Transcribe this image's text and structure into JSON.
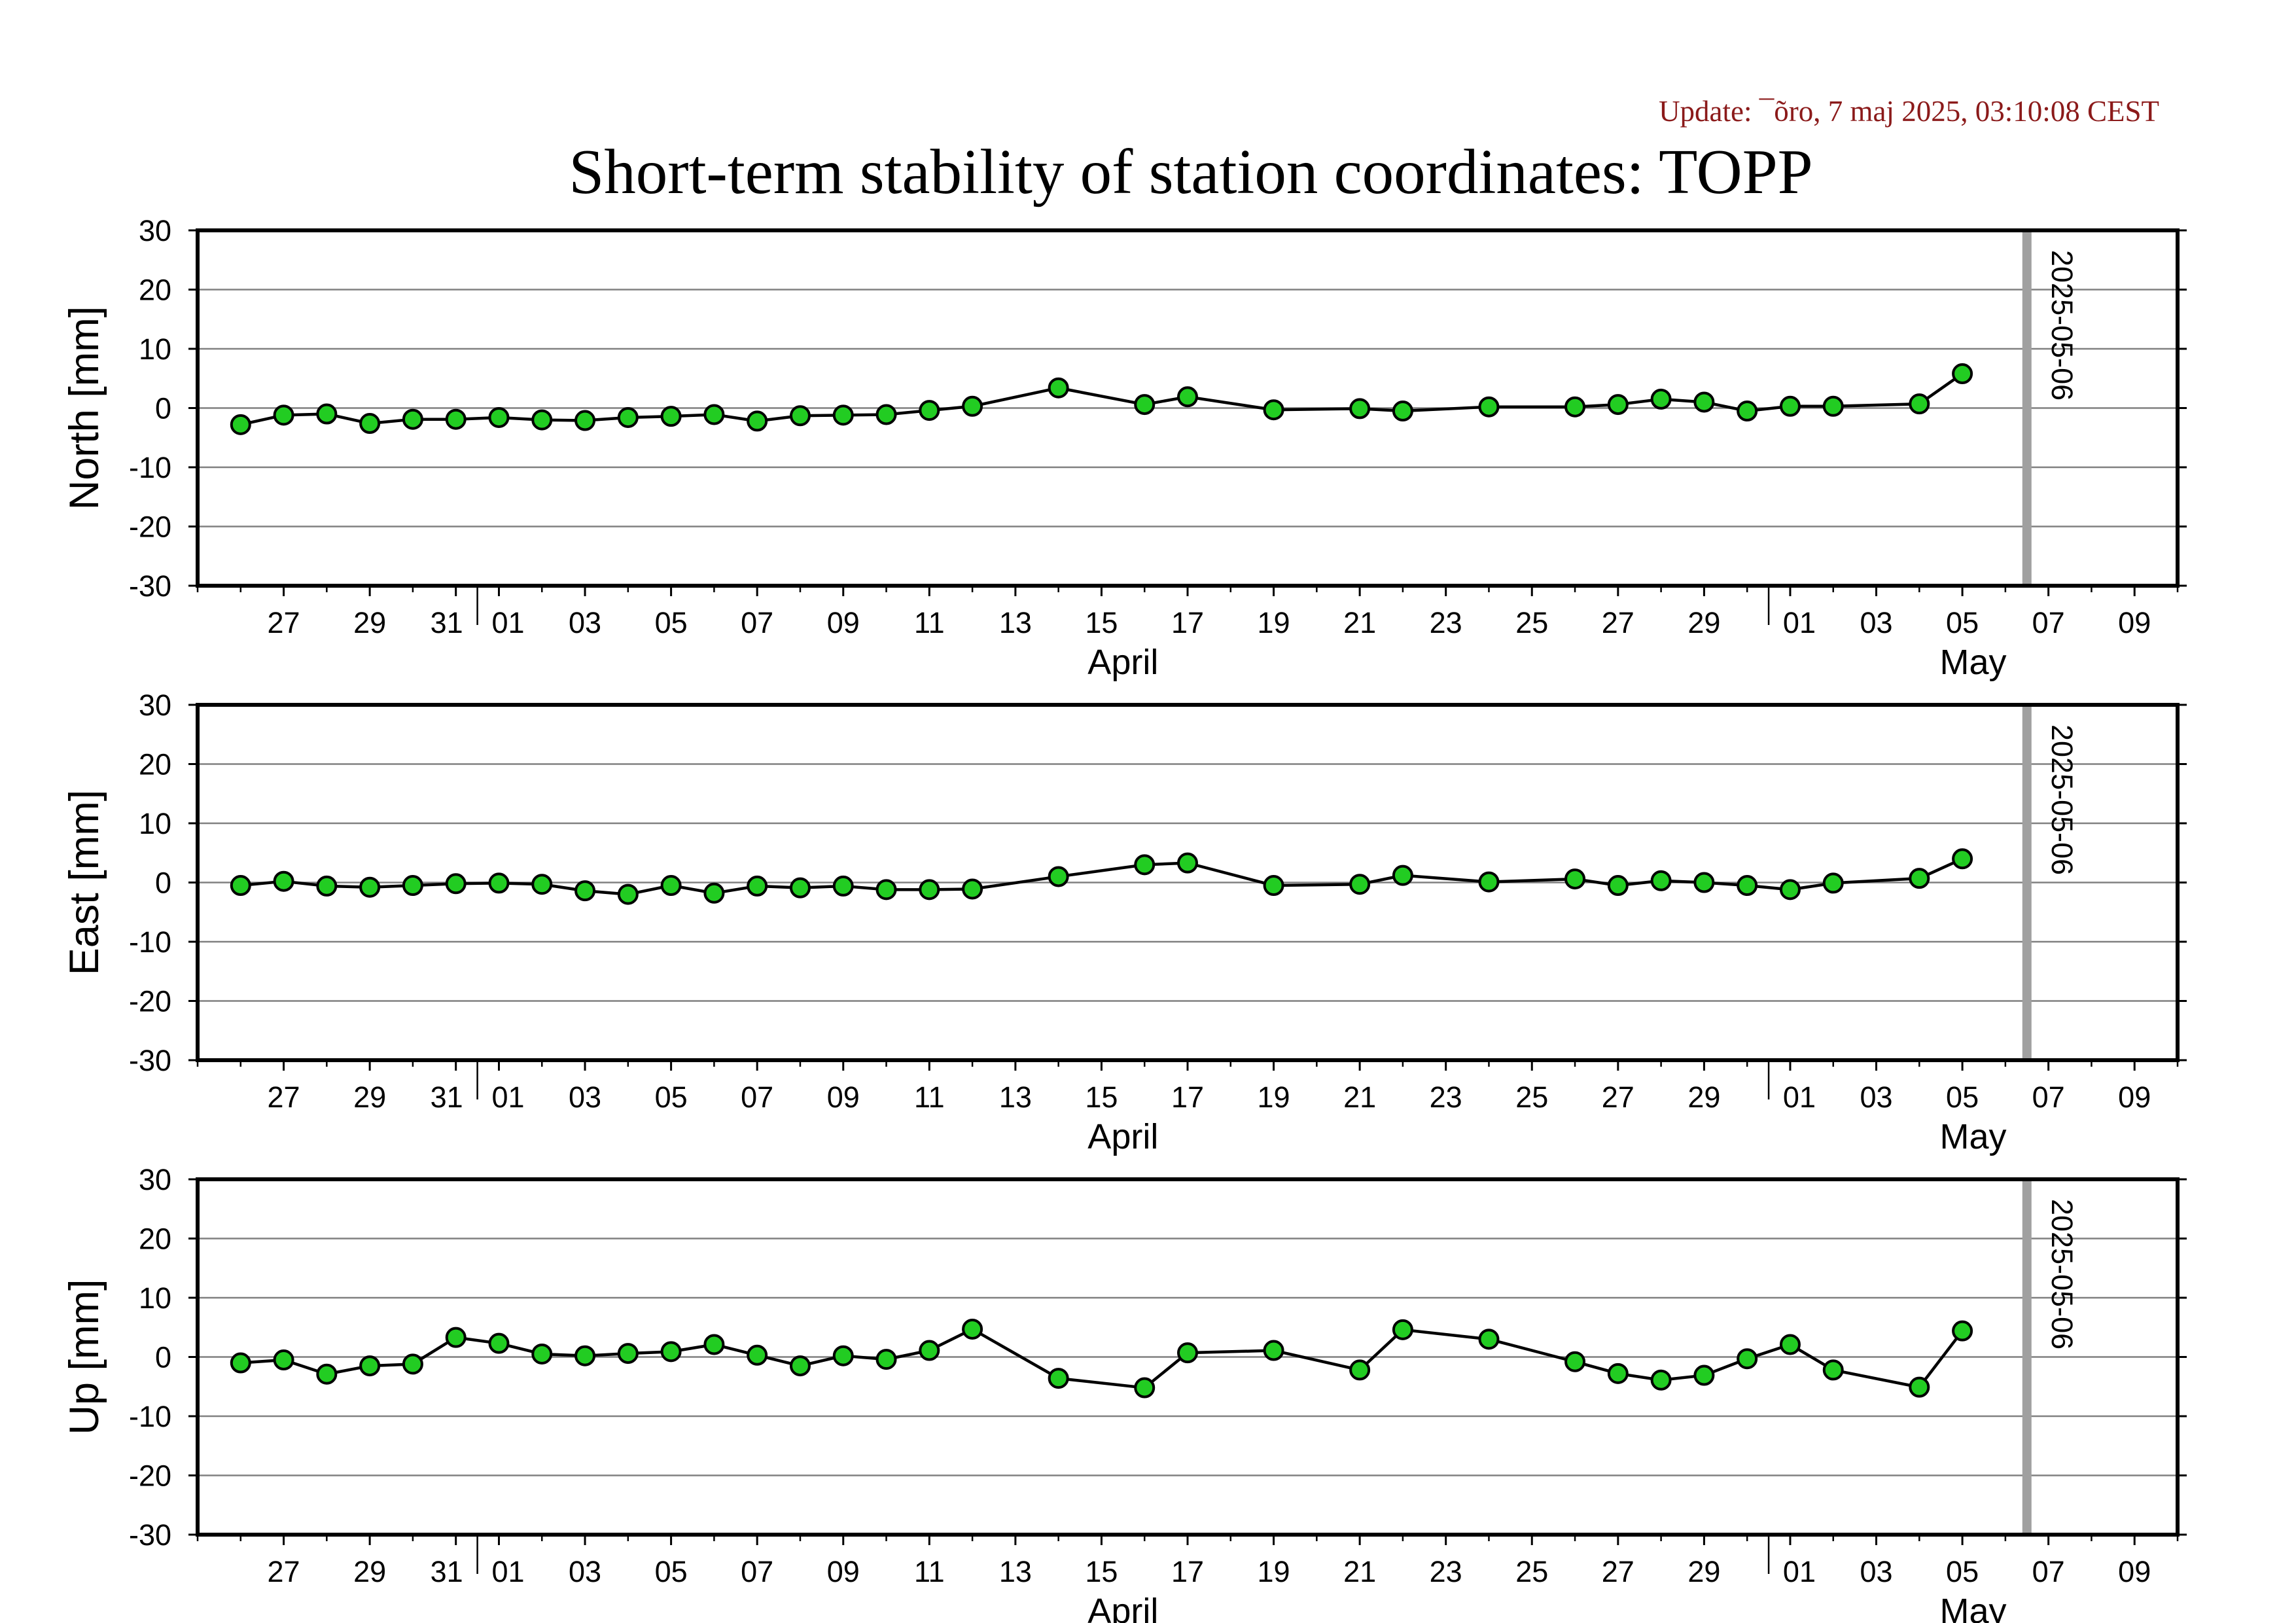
{
  "update_text": "Update: ¯õro, 7 maj 2025, 03:10:08 CEST",
  "title": "Short-term stability of station coordinates: TOPP",
  "colors": {
    "marker_fill": "#22cc22",
    "marker_stroke": "#000000",
    "line": "#000000",
    "grid": "#808080",
    "date_marker": "#a0a0a0",
    "update_text": "#8b1a1a"
  },
  "chart_data": [
    {
      "type": "line",
      "name": "north",
      "ylabel": "North [mm]",
      "ylim": [
        -30,
        30
      ],
      "yticks": [
        30,
        20,
        10,
        0,
        -10,
        -20,
        -30
      ],
      "xlim": [
        "2025-03-25",
        "2025-05-10"
      ],
      "x_tick_labels": [
        "27",
        "29",
        "31",
        "01",
        "03",
        "05",
        "07",
        "09",
        "11",
        "13",
        "15",
        "17",
        "19",
        "21",
        "23",
        "25",
        "27",
        "29",
        "01",
        "03",
        "05",
        "07",
        "09"
      ],
      "month_labels": [
        "April",
        "May"
      ],
      "date_marker": "2025-05-06",
      "grid": true,
      "points": [
        {
          "x": "2025-03-26",
          "y": -2.8
        },
        {
          "x": "2025-03-27",
          "y": -1.2
        },
        {
          "x": "2025-03-28",
          "y": -1.0
        },
        {
          "x": "2025-03-29",
          "y": -2.6
        },
        {
          "x": "2025-03-30",
          "y": -1.9
        },
        {
          "x": "2025-03-31",
          "y": -1.9
        },
        {
          "x": "2025-04-01",
          "y": -1.6
        },
        {
          "x": "2025-04-02",
          "y": -2.0
        },
        {
          "x": "2025-04-03",
          "y": -2.1
        },
        {
          "x": "2025-04-04",
          "y": -1.6
        },
        {
          "x": "2025-04-05",
          "y": -1.4
        },
        {
          "x": "2025-04-06",
          "y": -1.1
        },
        {
          "x": "2025-04-07",
          "y": -2.2
        },
        {
          "x": "2025-04-08",
          "y": -1.3
        },
        {
          "x": "2025-04-09",
          "y": -1.2
        },
        {
          "x": "2025-04-10",
          "y": -1.1
        },
        {
          "x": "2025-04-11",
          "y": -0.4
        },
        {
          "x": "2025-04-12",
          "y": 0.3
        },
        {
          "x": "2025-04-14",
          "y": 3.4
        },
        {
          "x": "2025-04-16",
          "y": 0.6
        },
        {
          "x": "2025-04-17",
          "y": 1.9
        },
        {
          "x": "2025-04-19",
          "y": -0.3
        },
        {
          "x": "2025-04-21",
          "y": -0.1
        },
        {
          "x": "2025-04-22",
          "y": -0.5
        },
        {
          "x": "2025-04-24",
          "y": 0.2
        },
        {
          "x": "2025-04-26",
          "y": 0.2
        },
        {
          "x": "2025-04-27",
          "y": 0.6
        },
        {
          "x": "2025-04-28",
          "y": 1.5
        },
        {
          "x": "2025-04-29",
          "y": 1.0
        },
        {
          "x": "2025-04-30",
          "y": -0.5
        },
        {
          "x": "2025-05-01",
          "y": 0.3
        },
        {
          "x": "2025-05-02",
          "y": 0.3
        },
        {
          "x": "2025-05-04",
          "y": 0.7
        },
        {
          "x": "2025-05-05",
          "y": 5.8
        }
      ]
    },
    {
      "type": "line",
      "name": "east",
      "ylabel": "East [mm]",
      "ylim": [
        -30,
        30
      ],
      "yticks": [
        30,
        20,
        10,
        0,
        -10,
        -20,
        -30
      ],
      "xlim": [
        "2025-03-25",
        "2025-05-10"
      ],
      "x_tick_labels": [
        "27",
        "29",
        "31",
        "01",
        "03",
        "05",
        "07",
        "09",
        "11",
        "13",
        "15",
        "17",
        "19",
        "21",
        "23",
        "25",
        "27",
        "29",
        "01",
        "03",
        "05",
        "07",
        "09"
      ],
      "month_labels": [
        "April",
        "May"
      ],
      "date_marker": "2025-05-06",
      "grid": true,
      "points": [
        {
          "x": "2025-03-26",
          "y": -0.5
        },
        {
          "x": "2025-03-27",
          "y": 0.2
        },
        {
          "x": "2025-03-28",
          "y": -0.6
        },
        {
          "x": "2025-03-29",
          "y": -0.8
        },
        {
          "x": "2025-03-30",
          "y": -0.5
        },
        {
          "x": "2025-03-31",
          "y": -0.2
        },
        {
          "x": "2025-04-01",
          "y": -0.1
        },
        {
          "x": "2025-04-02",
          "y": -0.3
        },
        {
          "x": "2025-04-03",
          "y": -1.4
        },
        {
          "x": "2025-04-04",
          "y": -2.0
        },
        {
          "x": "2025-04-05",
          "y": -0.5
        },
        {
          "x": "2025-04-06",
          "y": -1.8
        },
        {
          "x": "2025-04-07",
          "y": -0.6
        },
        {
          "x": "2025-04-08",
          "y": -0.9
        },
        {
          "x": "2025-04-09",
          "y": -0.6
        },
        {
          "x": "2025-04-10",
          "y": -1.2
        },
        {
          "x": "2025-04-11",
          "y": -1.2
        },
        {
          "x": "2025-04-12",
          "y": -1.1
        },
        {
          "x": "2025-04-14",
          "y": 1.0
        },
        {
          "x": "2025-04-16",
          "y": 3.0
        },
        {
          "x": "2025-04-17",
          "y": 3.3
        },
        {
          "x": "2025-04-19",
          "y": -0.5
        },
        {
          "x": "2025-04-21",
          "y": -0.3
        },
        {
          "x": "2025-04-22",
          "y": 1.2
        },
        {
          "x": "2025-04-24",
          "y": 0.1
        },
        {
          "x": "2025-04-26",
          "y": 0.6
        },
        {
          "x": "2025-04-27",
          "y": -0.5
        },
        {
          "x": "2025-04-28",
          "y": 0.3
        },
        {
          "x": "2025-04-29",
          "y": 0.0
        },
        {
          "x": "2025-04-30",
          "y": -0.5
        },
        {
          "x": "2025-05-01",
          "y": -1.2
        },
        {
          "x": "2025-05-02",
          "y": -0.1
        },
        {
          "x": "2025-05-04",
          "y": 0.7
        },
        {
          "x": "2025-05-05",
          "y": 4.0
        }
      ]
    },
    {
      "type": "line",
      "name": "up",
      "ylabel": "Up [mm]",
      "ylim": [
        -30,
        30
      ],
      "yticks": [
        30,
        20,
        10,
        0,
        -10,
        -20,
        -30
      ],
      "xlim": [
        "2025-03-25",
        "2025-05-10"
      ],
      "x_tick_labels": [
        "27",
        "29",
        "31",
        "01",
        "03",
        "05",
        "07",
        "09",
        "11",
        "13",
        "15",
        "17",
        "19",
        "21",
        "23",
        "25",
        "27",
        "29",
        "01",
        "03",
        "05",
        "07",
        "09"
      ],
      "month_labels": [
        "April",
        "May"
      ],
      "date_marker": "2025-05-06",
      "grid": true,
      "points": [
        {
          "x": "2025-03-26",
          "y": -1.0
        },
        {
          "x": "2025-03-27",
          "y": -0.5
        },
        {
          "x": "2025-03-28",
          "y": -2.9
        },
        {
          "x": "2025-03-29",
          "y": -1.5
        },
        {
          "x": "2025-03-30",
          "y": -1.2
        },
        {
          "x": "2025-03-31",
          "y": 3.3
        },
        {
          "x": "2025-04-01",
          "y": 2.3
        },
        {
          "x": "2025-04-02",
          "y": 0.5
        },
        {
          "x": "2025-04-03",
          "y": 0.2
        },
        {
          "x": "2025-04-04",
          "y": 0.6
        },
        {
          "x": "2025-04-05",
          "y": 0.9
        },
        {
          "x": "2025-04-06",
          "y": 2.1
        },
        {
          "x": "2025-04-07",
          "y": 0.3
        },
        {
          "x": "2025-04-08",
          "y": -1.5
        },
        {
          "x": "2025-04-09",
          "y": 0.2
        },
        {
          "x": "2025-04-10",
          "y": -0.4
        },
        {
          "x": "2025-04-11",
          "y": 1.1
        },
        {
          "x": "2025-04-12",
          "y": 4.7
        },
        {
          "x": "2025-04-14",
          "y": -3.6
        },
        {
          "x": "2025-04-16",
          "y": -5.2
        },
        {
          "x": "2025-04-17",
          "y": 0.7
        },
        {
          "x": "2025-04-19",
          "y": 1.1
        },
        {
          "x": "2025-04-21",
          "y": -2.2
        },
        {
          "x": "2025-04-22",
          "y": 4.6
        },
        {
          "x": "2025-04-24",
          "y": 3.0
        },
        {
          "x": "2025-04-26",
          "y": -0.8
        },
        {
          "x": "2025-04-27",
          "y": -2.8
        },
        {
          "x": "2025-04-28",
          "y": -3.9
        },
        {
          "x": "2025-04-29",
          "y": -3.1
        },
        {
          "x": "2025-04-30",
          "y": -0.3
        },
        {
          "x": "2025-05-01",
          "y": 2.1
        },
        {
          "x": "2025-05-02",
          "y": -2.2
        },
        {
          "x": "2025-05-04",
          "y": -5.1
        },
        {
          "x": "2025-05-05",
          "y": 4.4
        }
      ]
    }
  ]
}
